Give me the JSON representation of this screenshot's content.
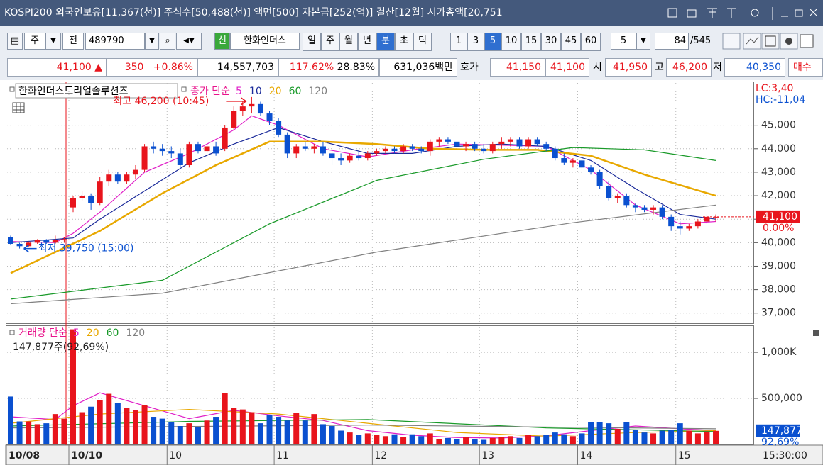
{
  "title_bar": {
    "text": "KOSPI200 외국인보유[11,367(천)] 주식수[50,488(천)] 액면[500] 자본금[252(억)] 결산[12월] 시가총액[20,751"
  },
  "toolbar": {
    "type_select": "주",
    "period_select": "전",
    "code": "489790",
    "stock_tag": "신",
    "name": "한화인더스",
    "periods": [
      "일",
      "주",
      "월",
      "년",
      "분",
      "초",
      "틱"
    ],
    "active_period": "분",
    "intervals": [
      "1",
      "3",
      "5",
      "10",
      "15",
      "30",
      "45",
      "60"
    ],
    "active_interval": "5",
    "interval_box": "5",
    "count": "84",
    "total": "/545"
  },
  "quote": {
    "price": "41,100",
    "arrow": "▲",
    "change": "350",
    "change_pct": "+0.86%",
    "volume": "14,557,703",
    "vol_ratio": "117.62%",
    "turnover": "28.83%",
    "amount": "631,036백만",
    "bid_label": "호가",
    "ask": "41,150",
    "bid": "41,100",
    "open_label": "시",
    "open": "41,950",
    "high_label": "고",
    "high": "46,200",
    "low_label": "저",
    "low": "40,350",
    "buy": "매수"
  },
  "chart_data": {
    "type": "candlestick",
    "name": "한화인더스트리얼솔루션즈",
    "legend_label": "종가 단순",
    "up_color": "#e8141c",
    "down_color": "#0a50d0",
    "open": [
      40250,
      39950,
      39850,
      40000,
      40100,
      40000,
      40100,
      41500,
      41900,
      42000,
      41700,
      42600,
      42900,
      42600,
      42900,
      43100,
      44100,
      44000,
      43900,
      43800,
      43300,
      44200,
      43900,
      44100,
      44000,
      44900,
      45600,
      45800,
      45900,
      45500,
      45200,
      44600,
      43800,
      44100,
      44000,
      44100,
      43800,
      43600,
      43500,
      43700,
      43600,
      43800,
      43900,
      44000,
      43900,
      44100,
      44000,
      43900,
      44300,
      44400,
      44300,
      44100,
      44200,
      44000,
      43900,
      44200,
      44300,
      44400,
      44100,
      44400,
      44200,
      44000,
      43600,
      43400,
      43500,
      43200,
      43000,
      42400,
      41900,
      42000,
      41600,
      41500,
      41400,
      41500,
      41100,
      40700,
      40600,
      40700,
      40900,
      41100
    ],
    "high": [
      40300,
      40000,
      40050,
      40150,
      40150,
      40300,
      40250,
      42000,
      42200,
      42100,
      42800,
      43100,
      43000,
      43000,
      43300,
      44200,
      44300,
      44200,
      44100,
      44000,
      44300,
      44300,
      44200,
      44300,
      45000,
      45800,
      46000,
      46200,
      46000,
      45600,
      45300,
      44700,
      44200,
      44300,
      44200,
      44300,
      44000,
      43800,
      43800,
      43900,
      43900,
      44000,
      44100,
      44100,
      44200,
      44200,
      44100,
      44400,
      44500,
      44500,
      44500,
      44300,
      44300,
      44200,
      44300,
      44500,
      44500,
      44500,
      44500,
      44500,
      44300,
      44100,
      43800,
      43600,
      43600,
      43300,
      43100,
      42600,
      42100,
      42100,
      41700,
      41600,
      41600,
      41600,
      41200,
      40900,
      40800,
      41000,
      41200,
      41200
    ],
    "low": [
      39900,
      39750,
      39800,
      39950,
      39950,
      39950,
      40000,
      41300,
      41800,
      41400,
      41600,
      42400,
      42500,
      42500,
      42700,
      43000,
      43800,
      43700,
      43600,
      43200,
      43200,
      43800,
      43800,
      43700,
      43900,
      44800,
      45400,
      45500,
      45400,
      45000,
      44500,
      43600,
      43600,
      43900,
      43800,
      43700,
      43300,
      43300,
      43400,
      43500,
      43500,
      43700,
      43800,
      43800,
      43800,
      43900,
      43800,
      43700,
      44100,
      44200,
      44000,
      43900,
      43900,
      43800,
      43800,
      44000,
      44100,
      44000,
      44000,
      44100,
      43900,
      43500,
      43300,
      43200,
      43100,
      42900,
      42300,
      41800,
      41700,
      41500,
      41300,
      41300,
      41200,
      41000,
      40500,
      40350,
      40500,
      40600,
      40800,
      40900
    ],
    "close": [
      39950,
      39850,
      40000,
      40100,
      40000,
      40100,
      40150,
      41900,
      42000,
      41700,
      42600,
      42900,
      42600,
      42900,
      43100,
      44100,
      44000,
      43900,
      43800,
      43300,
      44200,
      43900,
      44100,
      43800,
      44900,
      45600,
      45800,
      45900,
      45500,
      45200,
      44600,
      43800,
      44100,
      44000,
      44100,
      43800,
      43600,
      43500,
      43700,
      43600,
      43800,
      43900,
      44000,
      43900,
      44100,
      44000,
      43900,
      44300,
      44400,
      44300,
      44100,
      44200,
      44000,
      43900,
      44200,
      44300,
      44400,
      44100,
      44400,
      44200,
      44000,
      43600,
      43400,
      43500,
      43200,
      43000,
      42400,
      41900,
      42000,
      41600,
      41500,
      41400,
      41500,
      41100,
      40700,
      40600,
      40700,
      40900,
      41100,
      41100
    ],
    "series": [
      {
        "name": "5",
        "color": "#e020c8",
        "x": [
          0,
          5,
          7,
          10,
          15,
          20,
          25,
          27,
          30,
          35,
          40,
          45,
          50,
          55,
          60,
          65,
          70,
          75,
          79
        ],
        "values": [
          40050,
          40000,
          40400,
          41300,
          43000,
          43800,
          44800,
          45400,
          45000,
          44000,
          43650,
          43950,
          44200,
          44150,
          44100,
          43100,
          41600,
          40800,
          40900
        ]
      },
      {
        "name": "10",
        "color": "#1a2a9a",
        "x": [
          0,
          7,
          10,
          15,
          20,
          25,
          30,
          35,
          40,
          45,
          50,
          55,
          60,
          65,
          70,
          75,
          79
        ],
        "values": [
          40000,
          40200,
          41000,
          42200,
          43400,
          44200,
          44900,
          44300,
          43800,
          43800,
          44100,
          44200,
          44100,
          43500,
          42300,
          41200,
          41000
        ]
      },
      {
        "name": "20",
        "color": "#e8a800",
        "x": [
          0,
          10,
          17,
          23,
          29,
          35,
          41,
          47,
          53,
          59,
          65,
          71,
          79
        ],
        "values": [
          38700,
          40500,
          42100,
          43300,
          44300,
          44300,
          44200,
          44000,
          43950,
          43950,
          43700,
          42900,
          42000
        ]
      },
      {
        "name": "60",
        "color": "#1a9a2a",
        "x": [
          0,
          17,
          29,
          41,
          53,
          63,
          71,
          79
        ],
        "values": [
          37600,
          38400,
          40800,
          42650,
          43550,
          44050,
          43950,
          43500
        ]
      },
      {
        "name": "120",
        "color": "#808080",
        "x": [
          0,
          17,
          41,
          63,
          79
        ],
        "values": [
          37400,
          37850,
          39600,
          40850,
          41600
        ]
      }
    ],
    "ylim": [
      36600,
      46800
    ],
    "yticks": [
      {
        "value": 37000,
        "label": "37,000"
      },
      {
        "value": 38000,
        "label": "38,000"
      },
      {
        "value": 39000,
        "label": "39,000"
      },
      {
        "value": 40000,
        "label": "40,000"
      },
      {
        "value": 41000,
        "label": "41,000"
      },
      {
        "value": 42000,
        "label": "42,000"
      },
      {
        "value": 43000,
        "label": "43,000"
      },
      {
        "value": 44000,
        "label": "44,000"
      },
      {
        "value": 45000,
        "label": "45,000"
      }
    ],
    "grid": true,
    "x_labels": [
      {
        "index": 0,
        "label": "10/08"
      },
      {
        "index": 7,
        "label": "10/10"
      },
      {
        "index": 18,
        "label": "10"
      },
      {
        "index": 30,
        "label": "11"
      },
      {
        "index": 41,
        "label": "12"
      },
      {
        "index": 53,
        "label": "13"
      },
      {
        "index": 64,
        "label": "14"
      },
      {
        "index": 75,
        "label": "15"
      }
    ],
    "time_label": "15:30:00",
    "high_note": {
      "index": 27,
      "value": 46200,
      "label": "최고 46,200 (10:45)"
    },
    "low_note": {
      "index": 1,
      "value": 39750,
      "label": "최저 39,750 (15:00)"
    },
    "lc": "LC:3,40",
    "hc": "HC:-11,04",
    "last_price": {
      "value": 41100,
      "label": "41,100"
    },
    "last_pct": "0.00%",
    "volume": {
      "label": "거래량 단순",
      "info": "147,877주(92,69%)",
      "values": [
        520000,
        250000,
        250000,
        220000,
        230000,
        330000,
        280000,
        1250000,
        350000,
        410000,
        480000,
        550000,
        450000,
        400000,
        370000,
        430000,
        300000,
        280000,
        240000,
        200000,
        230000,
        190000,
        260000,
        300000,
        560000,
        400000,
        380000,
        350000,
        230000,
        320000,
        300000,
        260000,
        340000,
        260000,
        330000,
        220000,
        200000,
        150000,
        130000,
        100000,
        120000,
        100000,
        90000,
        110000,
        80000,
        110000,
        90000,
        120000,
        60000,
        70000,
        60000,
        80000,
        60000,
        50000,
        70000,
        80000,
        90000,
        70000,
        100000,
        90000,
        100000,
        130000,
        110000,
        90000,
        120000,
        240000,
        240000,
        230000,
        170000,
        240000,
        160000,
        130000,
        120000,
        150000,
        160000,
        230000,
        150000,
        120000,
        140000,
        147877
      ],
      "ylim": [
        0,
        1270000
      ],
      "yticks": [
        {
          "value": 500000,
          "label": "500,000"
        },
        {
          "value": 1000000,
          "label": "1,000K"
        }
      ],
      "series": [
        {
          "name": "5",
          "color": "#e020c8",
          "x": [
            0,
            5,
            7,
            10,
            15,
            20,
            25,
            30,
            35,
            40,
            45,
            50,
            55,
            60,
            65,
            70,
            75,
            79
          ],
          "values": [
            300000,
            270000,
            420000,
            560000,
            420000,
            280000,
            370000,
            310000,
            260000,
            150000,
            100000,
            75000,
            70000,
            95000,
            150000,
            200000,
            170000,
            150000
          ]
        },
        {
          "name": "20",
          "color": "#e8a800",
          "x": [
            0,
            10,
            20,
            30,
            40,
            50,
            60,
            70,
            79
          ],
          "values": [
            230000,
            330000,
            380000,
            330000,
            230000,
            130000,
            90000,
            130000,
            150000
          ]
        },
        {
          "name": "60",
          "color": "#1a9a2a",
          "x": [
            0,
            20,
            40,
            60,
            79
          ],
          "values": [
            200000,
            250000,
            270000,
            180000,
            140000
          ]
        },
        {
          "name": "120",
          "color": "#808080",
          "x": [
            0,
            40,
            79
          ],
          "values": [
            180000,
            210000,
            170000
          ]
        }
      ],
      "last": {
        "value": 147877,
        "label": "147,877"
      },
      "last_pct": "92,69%"
    }
  }
}
